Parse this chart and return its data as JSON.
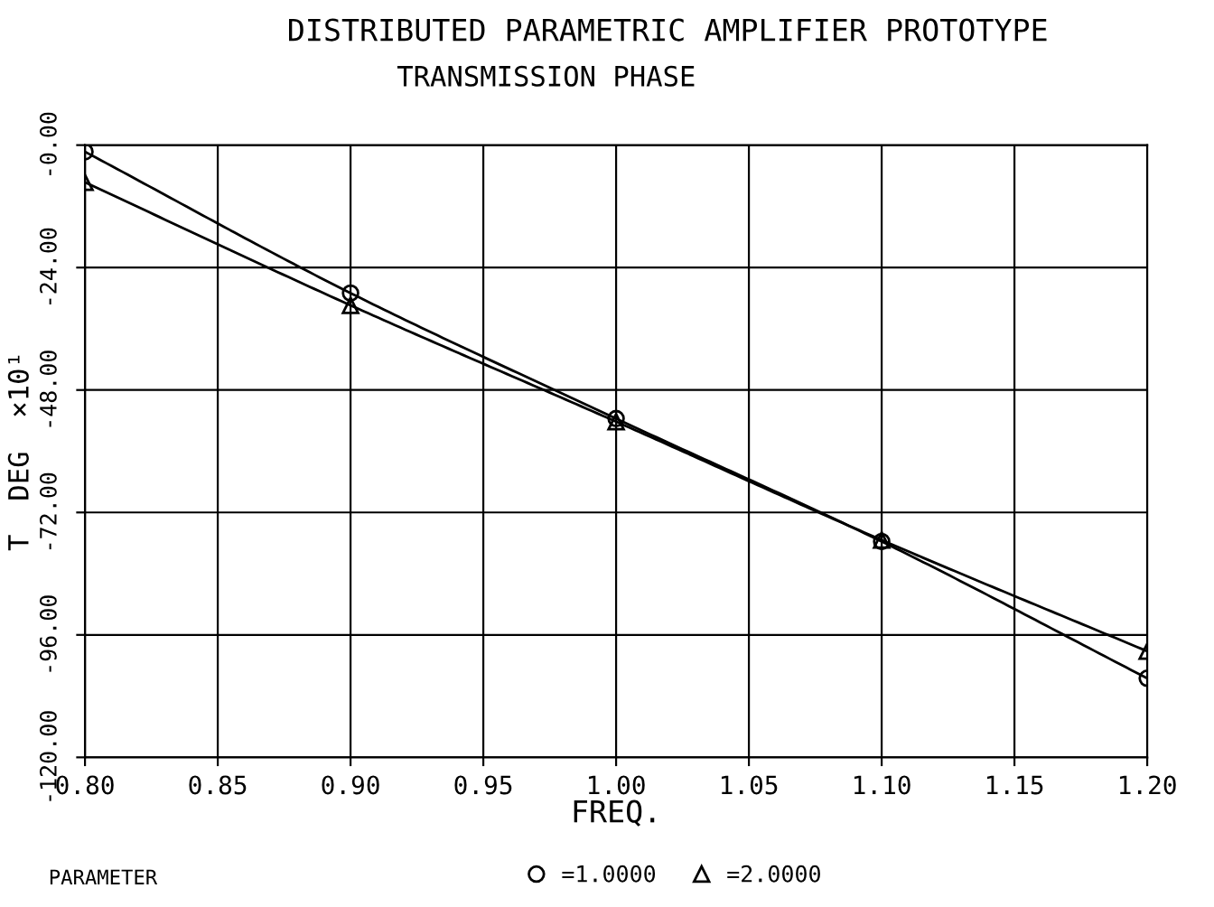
{
  "chart_data": {
    "type": "line",
    "title": "DISTRIBUTED PARAMETRIC AMPLIFIER PROTOTYPE",
    "subtitle": "TRANSMISSION PHASE",
    "xlabel": "FREQ.",
    "ylabel": "T  DEG  ×10¹",
    "legend_title": "PARAMETER",
    "x": [
      0.8,
      0.9,
      1.0,
      1.1,
      1.2
    ],
    "series": [
      {
        "name": "=1.0000",
        "color": "#000000",
        "marker": "circle",
        "values": [
          -1.3,
          -29,
          -53.6,
          -77.7,
          -104.5
        ]
      },
      {
        "name": "=2.0000",
        "color": "#000000",
        "marker": "triangle",
        "values": [
          -7.3,
          -31.4,
          -54.2,
          -77.4,
          -99.2
        ]
      }
    ],
    "xlim": [
      0.8,
      1.2
    ],
    "xticks": [
      {
        "value": 0.8,
        "label": "0.80"
      },
      {
        "value": 0.85,
        "label": "0.85"
      },
      {
        "value": 0.9,
        "label": "0.90"
      },
      {
        "value": 0.95,
        "label": "0.95"
      },
      {
        "value": 1.0,
        "label": "1.00"
      },
      {
        "value": 1.05,
        "label": "1.05"
      },
      {
        "value": 1.1,
        "label": "1.10"
      },
      {
        "value": 1.15,
        "label": "1.15"
      },
      {
        "value": 1.2,
        "label": "1.20"
      }
    ],
    "ylim": [
      -120,
      0
    ],
    "yticks": [
      {
        "value": 0,
        "label": "-0.00"
      },
      {
        "value": -24,
        "label": "-24.00"
      },
      {
        "value": -48,
        "label": "-48.00"
      },
      {
        "value": -72,
        "label": "-72.00"
      },
      {
        "value": -96,
        "label": "-96.00"
      },
      {
        "value": -120,
        "label": "-120.00"
      }
    ],
    "grid": true,
    "legend": "bottom",
    "line_style": "solid"
  }
}
